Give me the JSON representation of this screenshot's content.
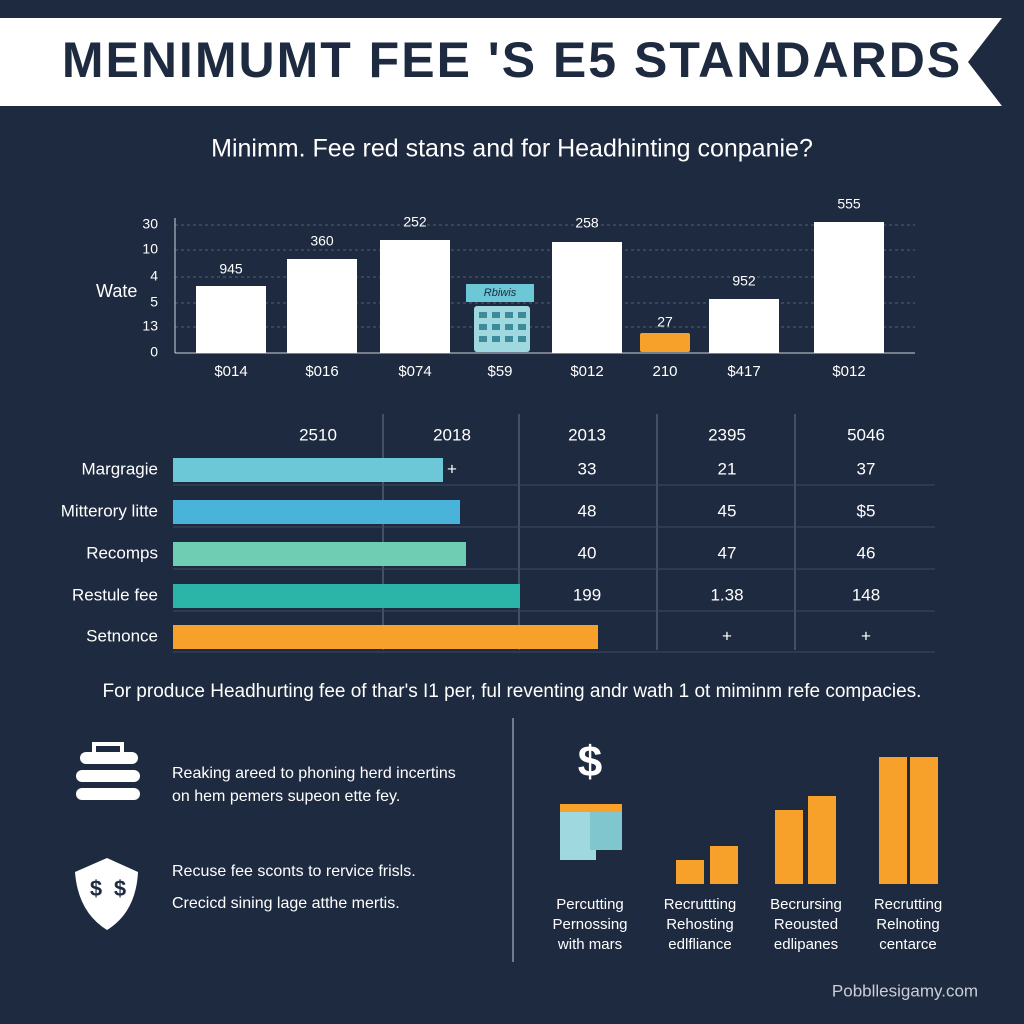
{
  "header": {
    "title": "MENIMUMT FEE 'S E5 STANDARDS"
  },
  "subtitle": "Minimm. Fee red stans and for Headhinting conpanie?",
  "chart": {
    "axis_label": "Wate",
    "y_labels": [
      "30",
      "10",
      "4",
      "5",
      "13",
      "0"
    ],
    "bars": [
      {
        "label": "$014",
        "value_label": "945"
      },
      {
        "label": "$016",
        "value_label": "360"
      },
      {
        "label": "$074",
        "value_label": "252"
      },
      {
        "label": "$59",
        "icon_text": "Rbiwis"
      },
      {
        "label": "$012",
        "value_label": "258"
      },
      {
        "label": "210",
        "value_label": "27"
      },
      {
        "label": "$417",
        "value_label": "952"
      },
      {
        "label": "$012",
        "value_label": "555"
      }
    ]
  },
  "table": {
    "headers": [
      "2510",
      "2018",
      "2013",
      "2395",
      "5046"
    ],
    "rows": [
      {
        "label": "Margragie",
        "cells": [
          "+",
          "33",
          "21",
          "37"
        ]
      },
      {
        "label": "Mitterory litte",
        "cells": [
          "48",
          "45",
          "$5"
        ]
      },
      {
        "label": "Recomps",
        "cells": [
          "40",
          "47",
          "46"
        ]
      },
      {
        "label": "Restule fee",
        "cells": [
          "199",
          "1.38",
          "148"
        ]
      },
      {
        "label": "Setnonce",
        "cells": [
          "+",
          "+"
        ]
      }
    ]
  },
  "note": "For produce Headhurting fee of thar's I1 per, ful reventing andr wath 1 ot miminm refe compacies.",
  "features": [
    {
      "lines": [
        "Reaking areed to phoning herd incertins",
        "on hem pemers supeon ette fey."
      ]
    },
    {
      "lines": [
        "Recuse fee sconts to rervice frisls.",
        "Crecicd sining lage atthe mertis."
      ]
    }
  ],
  "columns": [
    {
      "lines": [
        "Percutting",
        "Pernossing",
        "with mars"
      ]
    },
    {
      "lines": [
        "Recruttting",
        "Rehosting",
        "edlfliance"
      ]
    },
    {
      "lines": [
        "Becrursing",
        "Reousted",
        "edlipanes"
      ]
    },
    {
      "lines": [
        "Recrutting",
        "Relnoting",
        "centarce"
      ]
    }
  ],
  "watermark": "Pobbllesigamy.com"
}
